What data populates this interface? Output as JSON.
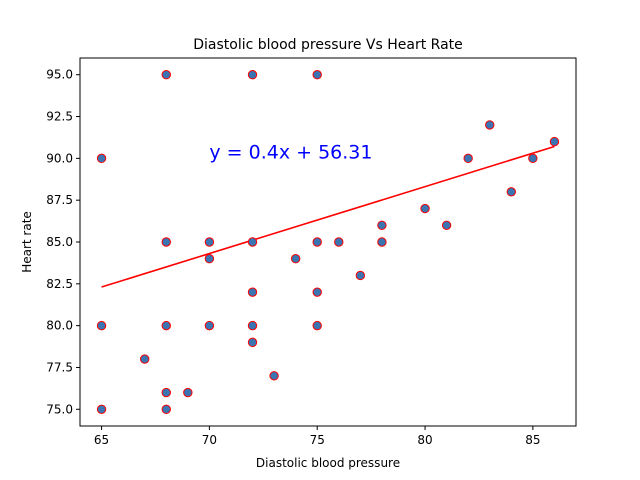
{
  "chart_data": {
    "type": "scatter",
    "title": "Diastolic blood pressure Vs Heart Rate",
    "xlabel": "Diastolic blood pressure",
    "ylabel": "Heart rate",
    "xlim": [
      64.0,
      87.0
    ],
    "ylim": [
      74.0,
      96.0
    ],
    "x_ticks": [
      65,
      70,
      75,
      80,
      85
    ],
    "x_tick_labels": [
      "65",
      "70",
      "75",
      "80",
      "85"
    ],
    "y_ticks": [
      75.0,
      77.5,
      80.0,
      82.5,
      85.0,
      87.5,
      90.0,
      92.5,
      95.0
    ],
    "y_tick_labels": [
      "75.0",
      "77.5",
      "80.0",
      "82.5",
      "85.0",
      "87.5",
      "90.0",
      "92.5",
      "95.0"
    ],
    "grid": false,
    "marker_fill": "#3a74b1",
    "marker_edge": "#ff0000",
    "line_color": "#ff0000",
    "annotation_color": "#0000ff",
    "points": [
      {
        "x": 65,
        "y": 90
      },
      {
        "x": 65,
        "y": 80
      },
      {
        "x": 65,
        "y": 75
      },
      {
        "x": 67,
        "y": 78
      },
      {
        "x": 68,
        "y": 95
      },
      {
        "x": 68,
        "y": 85
      },
      {
        "x": 68,
        "y": 80
      },
      {
        "x": 68,
        "y": 76
      },
      {
        "x": 68,
        "y": 75
      },
      {
        "x": 69,
        "y": 76
      },
      {
        "x": 70,
        "y": 85
      },
      {
        "x": 70,
        "y": 84
      },
      {
        "x": 70,
        "y": 80
      },
      {
        "x": 72,
        "y": 95
      },
      {
        "x": 72,
        "y": 85
      },
      {
        "x": 72,
        "y": 82
      },
      {
        "x": 72,
        "y": 80
      },
      {
        "x": 72,
        "y": 79
      },
      {
        "x": 73,
        "y": 77
      },
      {
        "x": 74,
        "y": 84
      },
      {
        "x": 75,
        "y": 95
      },
      {
        "x": 75,
        "y": 85
      },
      {
        "x": 75,
        "y": 82
      },
      {
        "x": 75,
        "y": 80
      },
      {
        "x": 76,
        "y": 85
      },
      {
        "x": 77,
        "y": 83
      },
      {
        "x": 78,
        "y": 86
      },
      {
        "x": 78,
        "y": 85
      },
      {
        "x": 80,
        "y": 87
      },
      {
        "x": 81,
        "y": 86
      },
      {
        "x": 82,
        "y": 90
      },
      {
        "x": 83,
        "y": 92
      },
      {
        "x": 84,
        "y": 88
      },
      {
        "x": 85,
        "y": 90
      },
      {
        "x": 86,
        "y": 91
      }
    ],
    "regression": {
      "slope": 0.4,
      "intercept": 56.31,
      "x_range": [
        65,
        86
      ],
      "equation_label": "y = 0.4x + 56.31",
      "label_position": {
        "x": 70,
        "y": 90
      }
    }
  }
}
